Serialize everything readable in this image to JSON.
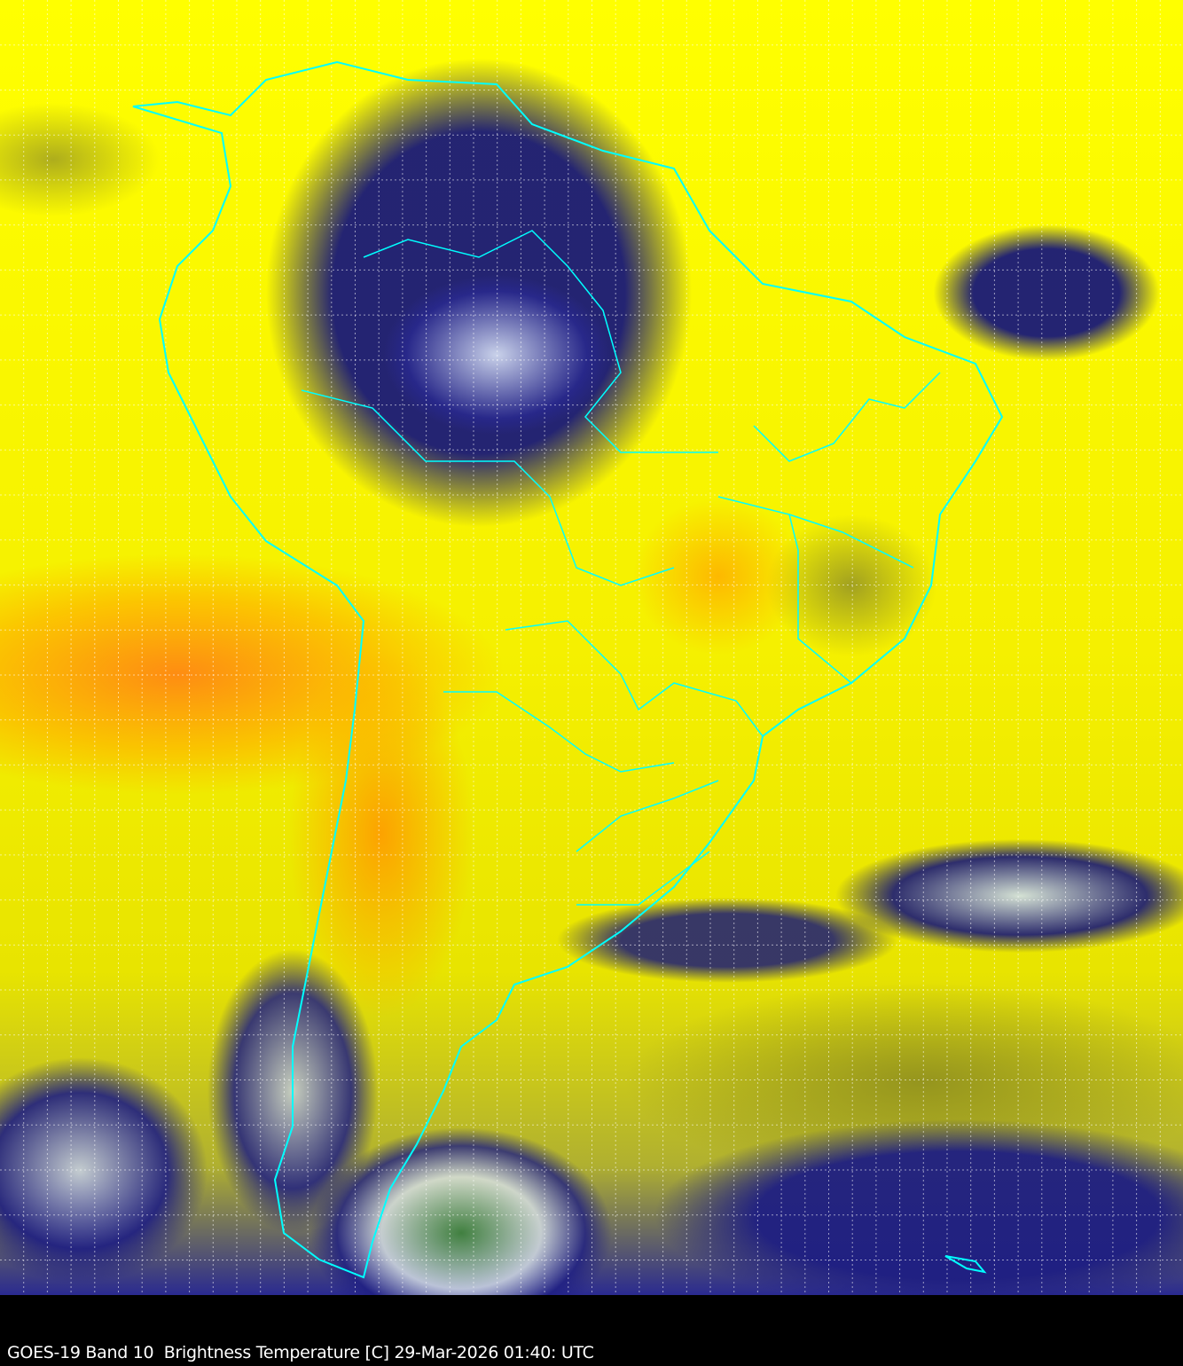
{
  "caption": "GOES-19 Band 10  Brightness Temperature [C] 29-Mar-2026 01:40: UTC",
  "colors": {
    "background": "#000000",
    "boundaries": "#00ffff",
    "grid": "#ffffff",
    "warm": "#ffff00",
    "hot": "#ff9900",
    "cold": "#1a1a80"
  }
}
